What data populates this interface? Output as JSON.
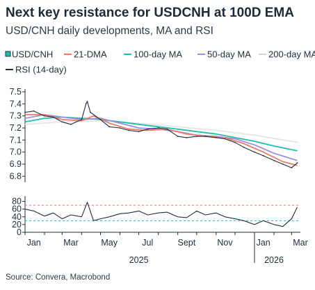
{
  "title": "Next key resistance for USDCNH at 100D EMA",
  "subtitle": "USD/CNH daily developments, MA and RSI",
  "source": "Source: Convera, Macrobond",
  "chart_data": [
    {
      "type": "line",
      "panel": "price",
      "ylim": [
        6.75,
        7.5
      ],
      "yticks": [
        "6.8",
        "6.9",
        "7.0",
        "7.1",
        "7.2",
        "7.3",
        "7.4",
        "7.5"
      ],
      "x_range": [
        "2025-01-01",
        "2026-03-15"
      ],
      "grid": false,
      "legend": "top",
      "series": [
        {
          "name": "USD/CNH",
          "color": "#1f2d3d",
          "x": [
            "2025-01-01",
            "2025-01-15",
            "2025-02-01",
            "2025-02-15",
            "2025-03-01",
            "2025-03-15",
            "2025-04-01",
            "2025-04-08",
            "2025-04-10",
            "2025-04-15",
            "2025-05-01",
            "2025-05-15",
            "2025-06-01",
            "2025-06-15",
            "2025-07-01",
            "2025-07-15",
            "2025-08-01",
            "2025-08-15",
            "2025-09-01",
            "2025-09-15",
            "2025-10-01",
            "2025-10-15",
            "2025-11-01",
            "2025-11-15",
            "2025-12-01",
            "2025-12-15",
            "2026-01-01",
            "2026-01-15",
            "2026-02-01",
            "2026-02-15",
            "2026-03-01",
            "2026-03-10"
          ],
          "values": [
            7.33,
            7.34,
            7.3,
            7.29,
            7.25,
            7.23,
            7.27,
            7.4,
            7.42,
            7.33,
            7.27,
            7.21,
            7.2,
            7.18,
            7.17,
            7.19,
            7.2,
            7.19,
            7.13,
            7.12,
            7.13,
            7.13,
            7.12,
            7.11,
            7.08,
            7.04,
            7.0,
            6.97,
            6.93,
            6.9,
            6.87,
            6.91
          ]
        },
        {
          "name": "21-DMA",
          "color": "#ee7966",
          "x": [
            "2025-01-01",
            "2025-02-01",
            "2025-03-01",
            "2025-04-01",
            "2025-04-20",
            "2025-05-15",
            "2025-06-15",
            "2025-07-15",
            "2025-08-15",
            "2025-09-15",
            "2025-10-15",
            "2025-11-15",
            "2025-12-15",
            "2026-01-15",
            "2026-02-15",
            "2026-03-10"
          ],
          "values": [
            7.31,
            7.31,
            7.27,
            7.26,
            7.3,
            7.24,
            7.19,
            7.18,
            7.19,
            7.15,
            7.13,
            7.12,
            7.07,
            7.0,
            6.92,
            6.89
          ]
        },
        {
          "name": "100-day MA",
          "color": "#1fbfaa",
          "x": [
            "2025-01-01",
            "2025-02-01",
            "2025-03-01",
            "2025-04-01",
            "2025-05-01",
            "2025-06-01",
            "2025-07-01",
            "2025-08-01",
            "2025-09-01",
            "2025-10-01",
            "2025-11-01",
            "2025-12-01",
            "2026-01-01",
            "2026-02-01",
            "2026-03-10"
          ],
          "values": [
            7.25,
            7.28,
            7.29,
            7.28,
            7.27,
            7.25,
            7.23,
            7.21,
            7.19,
            7.17,
            7.15,
            7.12,
            7.09,
            7.05,
            7.01
          ]
        },
        {
          "name": "50-day MA",
          "color": "#9b8ee6",
          "x": [
            "2025-01-01",
            "2025-02-01",
            "2025-03-01",
            "2025-04-01",
            "2025-05-01",
            "2025-06-01",
            "2025-07-01",
            "2025-08-01",
            "2025-09-01",
            "2025-10-01",
            "2025-11-01",
            "2025-12-01",
            "2026-01-01",
            "2026-02-01",
            "2026-03-10"
          ],
          "values": [
            7.28,
            7.31,
            7.29,
            7.27,
            7.28,
            7.24,
            7.2,
            7.19,
            7.17,
            7.14,
            7.13,
            7.11,
            7.06,
            6.99,
            6.93
          ]
        },
        {
          "name": "200-day MA",
          "color": "#e6e6e6",
          "x": [
            "2025-01-01",
            "2025-03-01",
            "2025-05-01",
            "2025-07-01",
            "2025-09-01",
            "2025-11-01",
            "2026-01-01",
            "2026-03-10"
          ],
          "values": [
            7.23,
            7.25,
            7.26,
            7.24,
            7.21,
            7.18,
            7.14,
            7.08
          ]
        }
      ]
    },
    {
      "type": "line",
      "panel": "rsi",
      "ylim": [
        0,
        90
      ],
      "yticks": [
        "0",
        "20",
        "40",
        "60",
        "80"
      ],
      "reference_lines": [
        {
          "value": 70,
          "color": "#ee7966",
          "style": "dashed"
        },
        {
          "value": 30,
          "color": "#1fbfaa",
          "style": "dashed"
        }
      ],
      "series": [
        {
          "name": "RSI (14-day)",
          "color": "#1f2d3d",
          "x": [
            "2025-01-01",
            "2025-01-15",
            "2025-02-01",
            "2025-02-15",
            "2025-03-01",
            "2025-03-15",
            "2025-04-01",
            "2025-04-10",
            "2025-04-20",
            "2025-05-01",
            "2025-05-15",
            "2025-06-01",
            "2025-06-15",
            "2025-07-01",
            "2025-07-15",
            "2025-08-01",
            "2025-08-15",
            "2025-09-01",
            "2025-09-15",
            "2025-10-01",
            "2025-10-15",
            "2025-11-01",
            "2025-11-15",
            "2025-12-01",
            "2025-12-15",
            "2026-01-01",
            "2026-01-15",
            "2026-02-01",
            "2026-02-15",
            "2026-03-01",
            "2026-03-10"
          ],
          "values": [
            60,
            55,
            42,
            50,
            35,
            45,
            40,
            78,
            30,
            35,
            40,
            48,
            50,
            55,
            45,
            50,
            52,
            40,
            38,
            55,
            45,
            50,
            40,
            35,
            30,
            20,
            30,
            20,
            15,
            35,
            65
          ]
        }
      ],
      "x_tick_labels": [
        "Jan",
        "Mar",
        "May",
        "Jul",
        "Sept",
        "Nov",
        "Jan",
        "Mar"
      ],
      "x_tick_dates": [
        "2025-01-15",
        "2025-03-15",
        "2025-05-15",
        "2025-07-15",
        "2025-09-15",
        "2025-11-15",
        "2026-01-15",
        "2026-03-15"
      ],
      "year_labels": [
        "2025",
        "2026"
      ]
    }
  ]
}
